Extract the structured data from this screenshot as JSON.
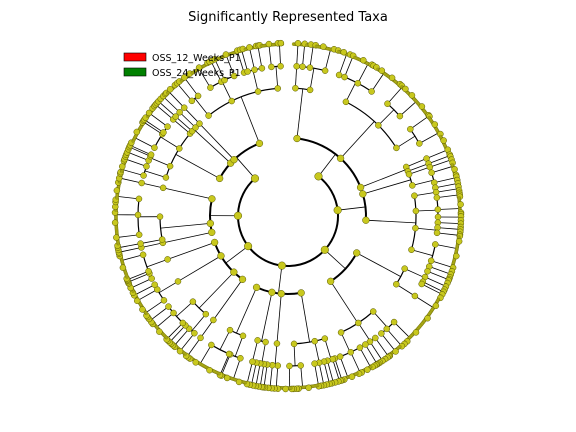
{
  "chart_data": {
    "type": "cladogram",
    "title": "Significantly Represented Taxa",
    "legend": {
      "placement": "top-left",
      "entries": [
        {
          "name": "OSS_12_Weeks_P1",
          "color": "#ff0000"
        },
        {
          "name": "OSS_24_Weeks_P1",
          "color": "#008000"
        }
      ]
    },
    "node_color": "#c8c81e",
    "edge_color": "#000000",
    "levels": 7,
    "highlighted_taxa": []
  }
}
